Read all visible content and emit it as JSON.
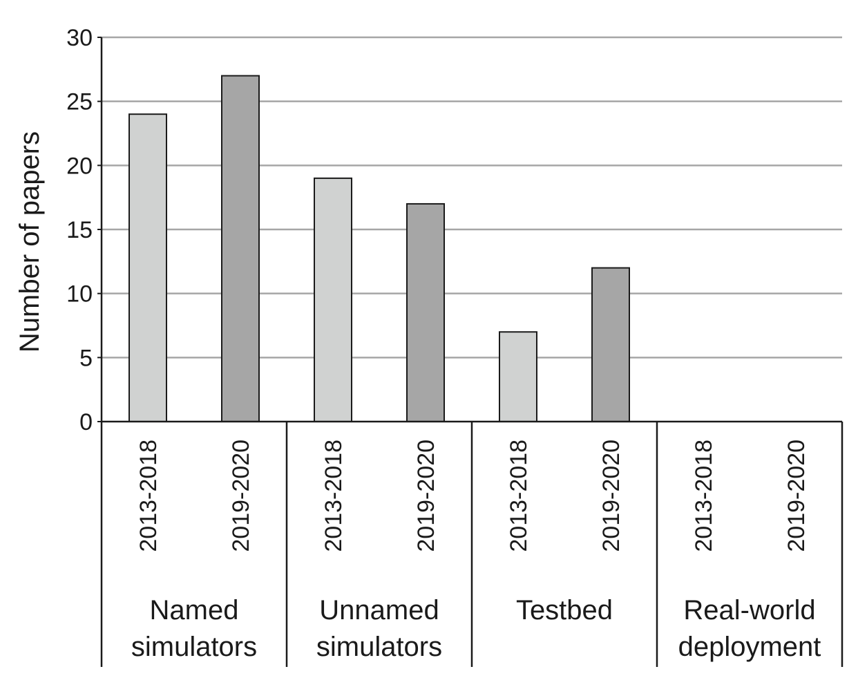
{
  "chart_data": {
    "type": "bar",
    "title": "",
    "xlabel": "",
    "ylabel": "Number of papers",
    "ylim": [
      0,
      30
    ],
    "yticks": [
      0,
      5,
      10,
      15,
      20,
      25,
      30
    ],
    "grid": true,
    "legend": "none",
    "groups": [
      {
        "label_lines": [
          "Named",
          "simulators"
        ],
        "bars": [
          {
            "period": "2013-2018",
            "value": 24
          },
          {
            "period": "2019-2020",
            "value": 27
          }
        ]
      },
      {
        "label_lines": [
          "Unnamed",
          "simulators"
        ],
        "bars": [
          {
            "period": "2013-2018",
            "value": 19
          },
          {
            "period": "2019-2020",
            "value": 17
          }
        ]
      },
      {
        "label_lines": [
          "Testbed"
        ],
        "bars": [
          {
            "period": "2013-2018",
            "value": 7
          },
          {
            "period": "2019-2020",
            "value": 12
          }
        ]
      },
      {
        "label_lines": [
          "Real-world",
          "deployment"
        ],
        "bars": [
          {
            "period": "2013-2018",
            "value": 0
          },
          {
            "period": "2019-2020",
            "value": 0
          }
        ]
      }
    ],
    "colors": {
      "2013-2018": "#d0d2d1",
      "2019-2020": "#a6a6a6",
      "bar_stroke": "#1a1a1a",
      "gridline": "#a6a6a6",
      "axis": "#1a1a1a"
    }
  }
}
